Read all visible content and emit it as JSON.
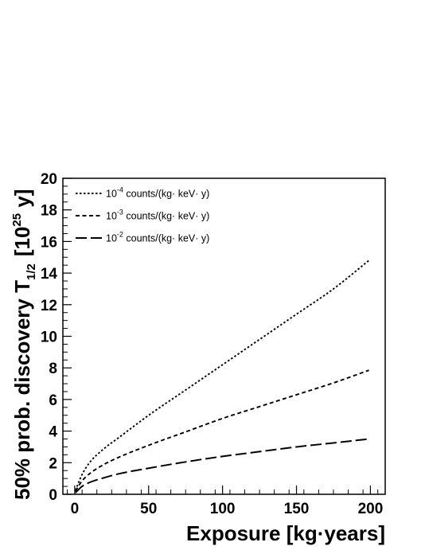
{
  "chart_data": {
    "type": "line",
    "xlabel": "Exposure [kg·years]",
    "ylabel": {
      "main": "50% prob. discovery T",
      "subscript": "1/2",
      "unit_prefix": "[10",
      "unit_exp": "25",
      "unit_suffix": " y]"
    },
    "xlim": [
      -8,
      210
    ],
    "ylim": [
      0,
      20
    ],
    "xticks": [
      0,
      50,
      100,
      150,
      200
    ],
    "yticks": [
      0,
      2,
      4,
      6,
      8,
      10,
      12,
      14,
      16,
      18,
      20
    ],
    "grid": false,
    "legend_position": "top-left",
    "series": [
      {
        "name": "10^-4 counts/(kg· keV· y)",
        "legend": {
          "base": "10",
          "exp": "-4",
          "text": " counts/(kg· keV· y)"
        },
        "style": "dotted",
        "x": [
          0.5,
          5,
          10,
          20,
          30,
          50,
          75,
          100,
          125,
          150,
          175,
          199
        ],
        "y": [
          0.25,
          1.25,
          2.0,
          2.9,
          3.6,
          5.0,
          6.6,
          8.2,
          9.8,
          11.4,
          13.0,
          14.8
        ]
      },
      {
        "name": "10^-3 counts/(kg· keV· y)",
        "legend": {
          "base": "10",
          "exp": "-3",
          "text": " counts/(kg· keV· y)"
        },
        "style": "dashed",
        "x": [
          0.5,
          5,
          10,
          20,
          30,
          50,
          75,
          100,
          125,
          150,
          175,
          199
        ],
        "y": [
          0.2,
          0.85,
          1.3,
          1.9,
          2.35,
          3.1,
          3.95,
          4.8,
          5.55,
          6.3,
          7.05,
          7.85
        ]
      },
      {
        "name": "10^-2 counts/(kg· keV· y)",
        "legend": {
          "base": "10",
          "exp": "-2",
          "text": " counts/(kg· keV· y)"
        },
        "style": "long-dash",
        "x": [
          0.5,
          5,
          10,
          20,
          30,
          50,
          75,
          100,
          125,
          150,
          175,
          199
        ],
        "y": [
          0.1,
          0.5,
          0.75,
          1.05,
          1.3,
          1.65,
          2.05,
          2.4,
          2.7,
          3.0,
          3.25,
          3.5
        ]
      }
    ]
  }
}
